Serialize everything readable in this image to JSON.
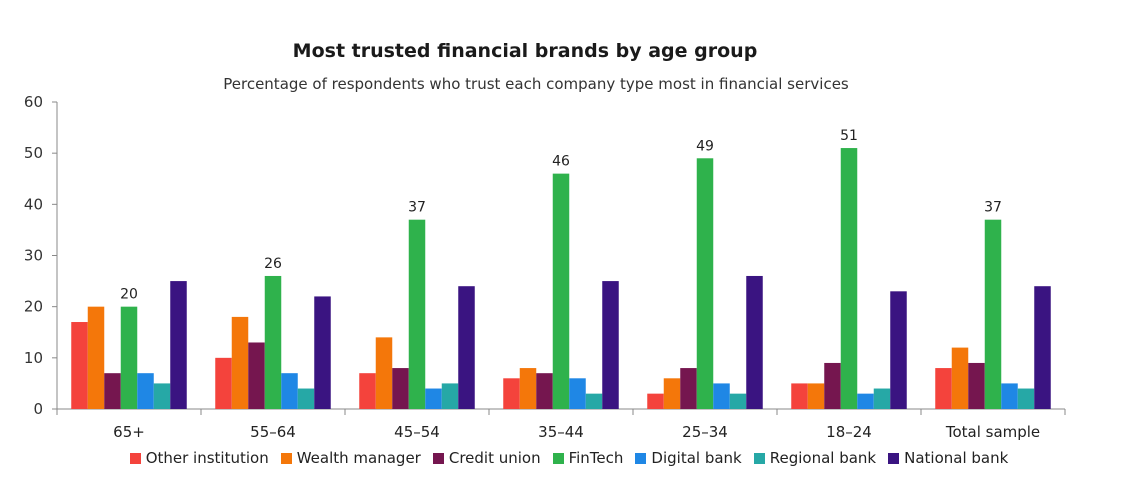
{
  "chart_data": {
    "type": "bar",
    "title": "Most trusted financial brands by age group",
    "subtitle": "Percentage of respondents who trust each company type most in financial services",
    "categories": [
      "65+",
      "55–64",
      "45–54",
      "35–44",
      "25–34",
      "18–24",
      "Total sample"
    ],
    "ylim": [
      0,
      60
    ],
    "yticks": [
      0,
      10,
      20,
      30,
      40,
      50,
      60
    ],
    "legend_position": "bottom",
    "grid": false,
    "series": [
      {
        "name": "Other institution",
        "color": "#f4433c",
        "values": [
          17,
          10,
          7,
          6,
          3,
          5,
          8
        ]
      },
      {
        "name": "Wealth manager",
        "color": "#f4770a",
        "values": [
          20,
          18,
          14,
          8,
          6,
          5,
          12
        ]
      },
      {
        "name": "Credit union",
        "color": "#75164f",
        "values": [
          7,
          13,
          8,
          7,
          8,
          9,
          9
        ]
      },
      {
        "name": "FinTech",
        "color": "#2fb24c",
        "values": [
          20,
          26,
          37,
          46,
          49,
          51,
          37
        ],
        "data_labels": [
          "20",
          "26",
          "37",
          "46",
          "49",
          "51",
          "37"
        ]
      },
      {
        "name": "Digital bank",
        "color": "#1f87e5",
        "values": [
          7,
          7,
          4,
          6,
          5,
          3,
          5
        ]
      },
      {
        "name": "Regional bank",
        "color": "#26a8a6",
        "values": [
          5,
          4,
          5,
          3,
          3,
          4,
          4
        ]
      },
      {
        "name": "National bank",
        "color": "#3a1481",
        "values": [
          25,
          22,
          24,
          25,
          26,
          23,
          24
        ]
      }
    ]
  }
}
